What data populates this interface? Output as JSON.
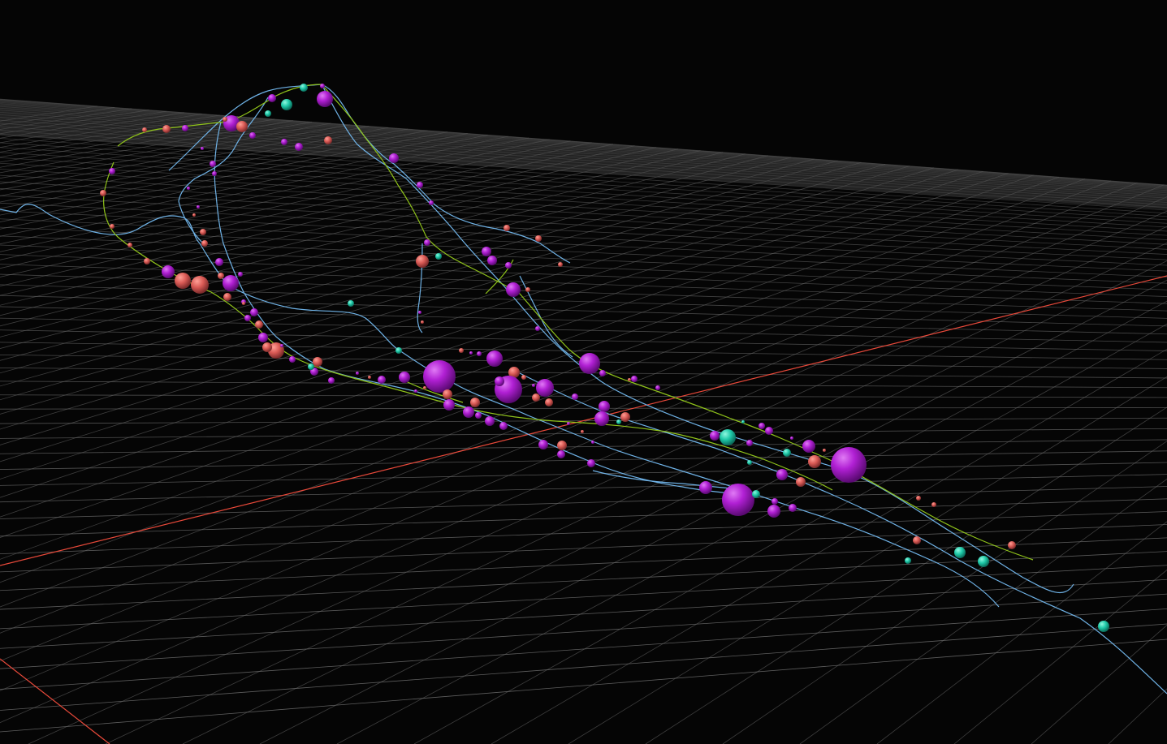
{
  "viewer": {
    "background_color": "#050505",
    "grid_color": "#6e6e6e",
    "axis_color": "#e8493a"
  },
  "legend_colors": {
    "node_magenta": "#a11fc4",
    "node_salmon": "#d95a55",
    "node_teal": "#1fc9a8",
    "track_blue": "#6fb2e6",
    "track_green": "#8fc21a"
  },
  "icons": [
    "sphere-marker-icon"
  ]
}
